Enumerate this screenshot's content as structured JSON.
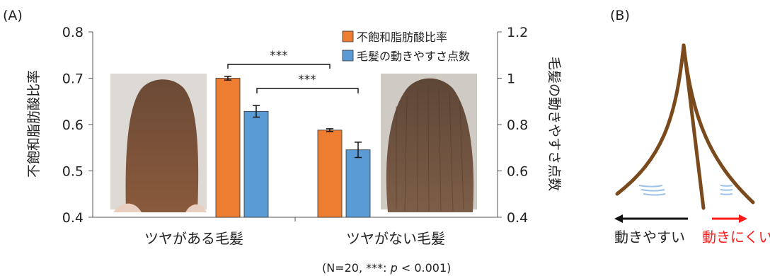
{
  "panel_labels": {
    "a": "(A)",
    "b": "(B)"
  },
  "chart_data": {
    "type": "bar",
    "categories": [
      "ツヤがある毛髪",
      "ツヤがない毛髪"
    ],
    "series": [
      {
        "name": "不飽和脂肪酸比率",
        "axis": "left",
        "color": "#ED7D31",
        "values": [
          0.7,
          0.588
        ],
        "errors": [
          0.004,
          0.003
        ]
      },
      {
        "name": "毛髪の動きやすさ点数",
        "axis": "right",
        "color": "#5B9BD5",
        "values": [
          0.857,
          0.691
        ],
        "errors": [
          0.025,
          0.033
        ]
      }
    ],
    "ylabel_left": "不飽和脂肪酸比率",
    "ylabel_right": "毛髪の動きやすさ点数",
    "ylim_left": [
      0.4,
      0.8
    ],
    "ylim_right": [
      0.4,
      1.2
    ],
    "yticks_left": [
      "0.4",
      "0.5",
      "0.6",
      "0.7",
      "0.8"
    ],
    "yticks_right": [
      "0.4",
      "0.6",
      "0.8",
      "1",
      "1.2"
    ],
    "legend_position": "top-right",
    "significance": [
      "***",
      "***"
    ],
    "footnote_prefix": "(N=20, ***: ",
    "footnote_p": "p",
    "footnote_suffix": " < 0.001)"
  },
  "diagram": {
    "left_label": "動きやすい",
    "right_label": "動きにくい",
    "hair_color": "#7A4A1C",
    "arrow_left_color": "#111111",
    "arrow_right_color": "#FF1A1A"
  }
}
